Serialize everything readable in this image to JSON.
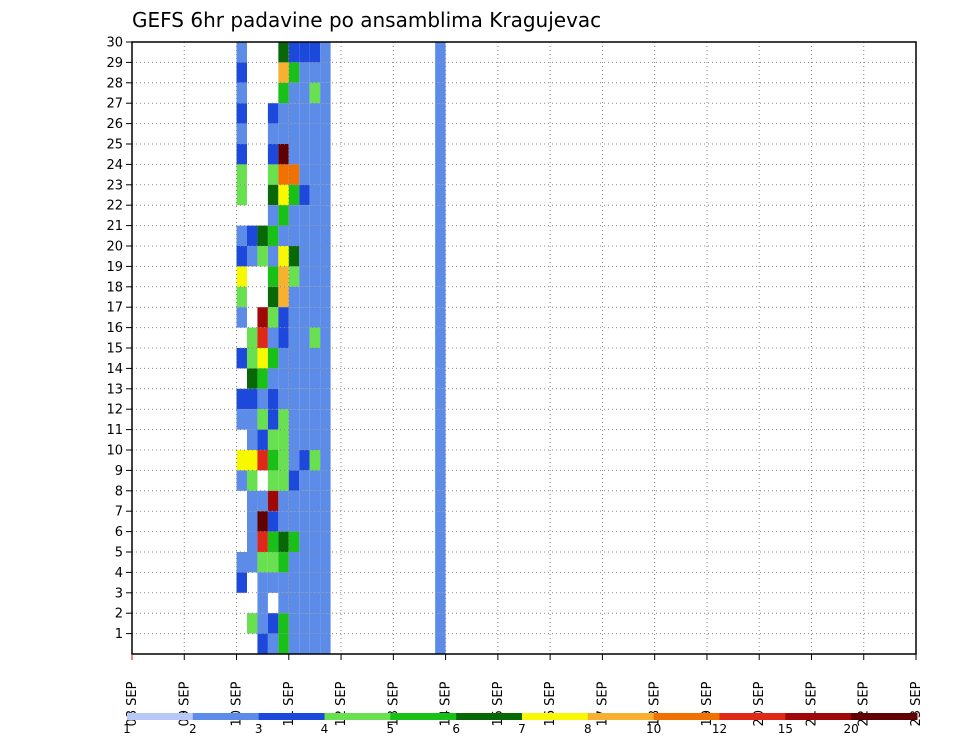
{
  "chart_data": {
    "type": "heatmap",
    "title": "GEFS 6hr padavine po ansamblima Kragujevac",
    "x_tick_labels": [
      "08 SEP",
      "09 SEP",
      "10 SEP",
      "11 SEP",
      "12 SEP",
      "13 SEP",
      "14 SEP",
      "15 SEP",
      "16 SEP",
      "17 SEP",
      "18 SEP",
      "19 SEP",
      "20 SEP",
      "21 SEP",
      "22 SEP",
      "23 SEP"
    ],
    "y_tick_labels": [
      "1",
      "2",
      "3",
      "4",
      "5",
      "6",
      "7",
      "8",
      "9",
      "10",
      "11",
      "12",
      "13",
      "14",
      "15",
      "16",
      "17",
      "18",
      "19",
      "20",
      "21",
      "22",
      "23",
      "24",
      "25",
      "26",
      "27",
      "28",
      "29",
      "30"
    ],
    "xlim": [
      0,
      15
    ],
    "ylim": [
      0,
      30
    ],
    "grid": true,
    "legend": "bottom",
    "colorbar": {
      "labels": [
        "1",
        "2",
        "3",
        "4",
        "5",
        "6",
        "7",
        "8",
        "10",
        "12",
        "15",
        "20"
      ],
      "colors": [
        "#b8c8f8",
        "#5c8ce8",
        "#1c48dc",
        "#68e050",
        "#18c018",
        "#086808",
        "#f8f800",
        "#f8b030",
        "#f07000",
        "#e02818",
        "#a00808",
        "#600000"
      ]
    },
    "cells": [
      [
        2.0,
        2.2,
        29.5,
        1
      ],
      [
        2.0,
        2.2,
        28.5,
        2
      ],
      [
        2.0,
        2.2,
        27.5,
        1
      ],
      [
        2.0,
        2.2,
        26.5,
        2
      ],
      [
        2.0,
        2.2,
        25.5,
        1
      ],
      [
        2.0,
        2.2,
        24.5,
        2
      ],
      [
        2.0,
        2.2,
        23.5,
        3
      ],
      [
        2.0,
        2.2,
        22.5,
        3
      ],
      [
        2.0,
        2.2,
        20.5,
        1
      ],
      [
        2.0,
        2.2,
        19.5,
        2
      ],
      [
        2.0,
        2.2,
        18.5,
        6
      ],
      [
        2.0,
        2.2,
        17.5,
        3
      ],
      [
        2.0,
        2.2,
        16.5,
        1
      ],
      [
        2.0,
        2.2,
        14.5,
        2
      ],
      [
        2.0,
        2.2,
        12.5,
        2
      ],
      [
        2.0,
        2.2,
        11.5,
        1
      ],
      [
        2.0,
        2.2,
        9.5,
        6
      ],
      [
        2.0,
        2.2,
        8.5,
        1
      ],
      [
        2.0,
        2.2,
        4.5,
        1
      ],
      [
        2.0,
        2.2,
        3.5,
        2
      ],
      [
        2.2,
        2.4,
        20.5,
        2
      ],
      [
        2.2,
        2.4,
        19.5,
        1
      ],
      [
        2.2,
        2.4,
        15.5,
        3
      ],
      [
        2.2,
        2.4,
        14.5,
        3
      ],
      [
        2.2,
        2.4,
        13.5,
        5
      ],
      [
        2.2,
        2.4,
        12.5,
        2
      ],
      [
        2.2,
        2.4,
        11.5,
        1
      ],
      [
        2.2,
        2.4,
        10.5,
        1
      ],
      [
        2.2,
        2.4,
        9.5,
        6
      ],
      [
        2.2,
        2.4,
        8.5,
        3
      ],
      [
        2.2,
        2.4,
        7.5,
        1
      ],
      [
        2.2,
        2.4,
        6.5,
        1
      ],
      [
        2.2,
        2.4,
        5.5,
        1
      ],
      [
        2.2,
        2.4,
        4.5,
        1
      ],
      [
        2.2,
        2.4,
        1.5,
        3
      ],
      [
        2.4,
        2.6,
        20.5,
        5
      ],
      [
        2.4,
        2.6,
        19.5,
        3
      ],
      [
        2.4,
        2.6,
        16.5,
        10
      ],
      [
        2.4,
        2.6,
        15.5,
        9
      ],
      [
        2.4,
        2.6,
        14.5,
        6
      ],
      [
        2.4,
        2.6,
        13.5,
        4
      ],
      [
        2.4,
        2.6,
        12.5,
        1
      ],
      [
        2.4,
        2.6,
        11.5,
        3
      ],
      [
        2.4,
        2.6,
        10.5,
        2
      ],
      [
        2.4,
        2.6,
        9.5,
        9
      ],
      [
        2.4,
        2.6,
        7.5,
        1
      ],
      [
        2.4,
        2.6,
        6.5,
        11
      ],
      [
        2.4,
        2.6,
        5.5,
        9
      ],
      [
        2.4,
        2.6,
        4.5,
        3
      ],
      [
        2.4,
        2.6,
        3.5,
        1
      ],
      [
        2.4,
        2.6,
        2.5,
        1
      ],
      [
        2.4,
        2.6,
        1.5,
        1
      ],
      [
        2.4,
        2.6,
        0.5,
        2
      ],
      [
        2.6,
        2.8,
        26.5,
        2
      ],
      [
        2.6,
        2.8,
        25.5,
        1
      ],
      [
        2.6,
        2.8,
        24.5,
        2
      ],
      [
        2.6,
        2.8,
        23.5,
        3
      ],
      [
        2.6,
        2.8,
        22.5,
        5
      ],
      [
        2.6,
        2.8,
        21.5,
        1
      ],
      [
        2.6,
        2.8,
        20.5,
        4
      ],
      [
        2.6,
        2.8,
        19.5,
        1
      ],
      [
        2.6,
        2.8,
        18.5,
        4
      ],
      [
        2.6,
        2.8,
        17.5,
        5
      ],
      [
        2.6,
        2.8,
        16.5,
        3
      ],
      [
        2.6,
        2.8,
        15.5,
        1
      ],
      [
        2.6,
        2.8,
        14.5,
        4
      ],
      [
        2.6,
        2.8,
        13.5,
        1
      ],
      [
        2.6,
        2.8,
        12.5,
        2
      ],
      [
        2.6,
        2.8,
        11.5,
        2
      ],
      [
        2.6,
        2.8,
        10.5,
        3
      ],
      [
        2.6,
        2.8,
        9.5,
        4
      ],
      [
        2.6,
        2.8,
        8.5,
        3
      ],
      [
        2.6,
        2.8,
        7.5,
        10
      ],
      [
        2.6,
        2.8,
        6.5,
        2
      ],
      [
        2.6,
        2.8,
        5.5,
        4
      ],
      [
        2.6,
        2.8,
        4.5,
        3
      ],
      [
        2.6,
        2.8,
        3.5,
        1
      ],
      [
        2.6,
        2.8,
        1.5,
        2
      ],
      [
        2.6,
        2.8,
        0.5,
        1
      ],
      [
        2.8,
        3.0,
        29.5,
        5
      ],
      [
        2.8,
        3.0,
        28.5,
        7
      ],
      [
        2.8,
        3.0,
        27.5,
        4
      ],
      [
        2.8,
        3.0,
        26.5,
        1
      ],
      [
        2.8,
        3.0,
        25.5,
        1
      ],
      [
        2.8,
        3.0,
        24.5,
        11
      ],
      [
        2.8,
        3.0,
        23.5,
        8
      ],
      [
        2.8,
        3.0,
        22.5,
        6
      ],
      [
        2.8,
        3.0,
        21.5,
        4
      ],
      [
        2.8,
        3.0,
        20.5,
        1
      ],
      [
        2.8,
        3.0,
        19.5,
        6
      ],
      [
        2.8,
        3.0,
        18.5,
        7
      ],
      [
        2.8,
        3.0,
        17.5,
        7
      ],
      [
        2.8,
        3.0,
        16.5,
        2
      ],
      [
        2.8,
        3.0,
        15.5,
        2
      ],
      [
        2.8,
        3.0,
        14.5,
        1
      ],
      [
        2.8,
        3.0,
        13.5,
        1
      ],
      [
        2.8,
        3.0,
        12.5,
        1
      ],
      [
        2.8,
        3.0,
        11.5,
        3
      ],
      [
        2.8,
        3.0,
        10.5,
        3
      ],
      [
        2.8,
        3.0,
        9.5,
        3
      ],
      [
        2.8,
        3.0,
        8.5,
        3
      ],
      [
        2.8,
        3.0,
        7.5,
        1
      ],
      [
        2.8,
        3.0,
        6.5,
        1
      ],
      [
        2.8,
        3.0,
        5.5,
        5
      ],
      [
        2.8,
        3.0,
        4.5,
        4
      ],
      [
        2.8,
        3.0,
        3.5,
        1
      ],
      [
        2.8,
        3.0,
        2.5,
        1
      ],
      [
        2.8,
        3.0,
        1.5,
        4
      ],
      [
        2.8,
        3.0,
        0.5,
        4
      ],
      [
        3.0,
        3.2,
        29.5,
        2
      ],
      [
        3.0,
        3.2,
        28.5,
        4
      ],
      [
        3.0,
        3.2,
        27.5,
        1
      ],
      [
        3.0,
        3.2,
        26.5,
        1
      ],
      [
        3.0,
        3.2,
        25.5,
        1
      ],
      [
        3.0,
        3.2,
        24.5,
        1
      ],
      [
        3.0,
        3.2,
        23.5,
        8
      ],
      [
        3.0,
        3.2,
        22.5,
        4
      ],
      [
        3.0,
        3.2,
        21.5,
        1
      ],
      [
        3.0,
        3.2,
        20.5,
        1
      ],
      [
        3.0,
        3.2,
        19.5,
        5
      ],
      [
        3.0,
        3.2,
        18.5,
        3
      ],
      [
        3.0,
        3.2,
        17.5,
        1
      ],
      [
        3.0,
        3.2,
        16.5,
        1
      ],
      [
        3.0,
        3.2,
        15.5,
        1
      ],
      [
        3.0,
        3.2,
        14.5,
        1
      ],
      [
        3.0,
        3.2,
        13.5,
        1
      ],
      [
        3.0,
        3.2,
        12.5,
        1
      ],
      [
        3.0,
        3.2,
        11.5,
        1
      ],
      [
        3.0,
        3.2,
        10.5,
        1
      ],
      [
        3.0,
        3.2,
        9.5,
        1
      ],
      [
        3.0,
        3.2,
        8.5,
        2
      ],
      [
        3.0,
        3.2,
        7.5,
        1
      ],
      [
        3.0,
        3.2,
        6.5,
        1
      ],
      [
        3.0,
        3.2,
        5.5,
        4
      ],
      [
        3.0,
        3.2,
        4.5,
        1
      ],
      [
        3.0,
        3.2,
        3.5,
        1
      ],
      [
        3.0,
        3.2,
        2.5,
        1
      ],
      [
        3.0,
        3.2,
        1.5,
        1
      ],
      [
        3.0,
        3.2,
        0.5,
        1
      ],
      [
        3.2,
        3.4,
        29.5,
        2
      ],
      [
        3.2,
        3.4,
        28.5,
        1
      ],
      [
        3.2,
        3.4,
        27.5,
        1
      ],
      [
        3.2,
        3.4,
        26.5,
        1
      ],
      [
        3.2,
        3.4,
        25.5,
        1
      ],
      [
        3.2,
        3.4,
        24.5,
        1
      ],
      [
        3.2,
        3.4,
        23.5,
        1
      ],
      [
        3.2,
        3.4,
        22.5,
        2
      ],
      [
        3.2,
        3.4,
        21.5,
        1
      ],
      [
        3.2,
        3.4,
        20.5,
        1
      ],
      [
        3.2,
        3.4,
        19.5,
        1
      ],
      [
        3.2,
        3.4,
        18.5,
        1
      ],
      [
        3.2,
        3.4,
        17.5,
        1
      ],
      [
        3.2,
        3.4,
        16.5,
        1
      ],
      [
        3.2,
        3.4,
        15.5,
        1
      ],
      [
        3.2,
        3.4,
        14.5,
        1
      ],
      [
        3.2,
        3.4,
        13.5,
        1
      ],
      [
        3.2,
        3.4,
        12.5,
        1
      ],
      [
        3.2,
        3.4,
        11.5,
        1
      ],
      [
        3.2,
        3.4,
        10.5,
        1
      ],
      [
        3.2,
        3.4,
        9.5,
        2
      ],
      [
        3.2,
        3.4,
        8.5,
        1
      ],
      [
        3.2,
        3.4,
        7.5,
        1
      ],
      [
        3.2,
        3.4,
        6.5,
        1
      ],
      [
        3.2,
        3.4,
        5.5,
        1
      ],
      [
        3.2,
        3.4,
        4.5,
        1
      ],
      [
        3.2,
        3.4,
        3.5,
        1
      ],
      [
        3.2,
        3.4,
        2.5,
        1
      ],
      [
        3.2,
        3.4,
        1.5,
        1
      ],
      [
        3.2,
        3.4,
        0.5,
        1
      ],
      [
        3.4,
        3.6,
        29.5,
        2
      ],
      [
        3.4,
        3.6,
        28.5,
        1
      ],
      [
        3.4,
        3.6,
        27.5,
        3
      ],
      [
        3.4,
        3.6,
        26.5,
        1
      ],
      [
        3.4,
        3.6,
        25.5,
        1
      ],
      [
        3.4,
        3.6,
        24.5,
        1
      ],
      [
        3.4,
        3.6,
        23.5,
        1
      ],
      [
        3.4,
        3.6,
        22.5,
        1
      ],
      [
        3.4,
        3.6,
        21.5,
        1
      ],
      [
        3.4,
        3.6,
        20.5,
        1
      ],
      [
        3.4,
        3.6,
        19.5,
        1
      ],
      [
        3.4,
        3.6,
        18.5,
        1
      ],
      [
        3.4,
        3.6,
        17.5,
        1
      ],
      [
        3.4,
        3.6,
        16.5,
        1
      ],
      [
        3.4,
        3.6,
        15.5,
        3
      ],
      [
        3.4,
        3.6,
        14.5,
        1
      ],
      [
        3.4,
        3.6,
        13.5,
        1
      ],
      [
        3.4,
        3.6,
        12.5,
        1
      ],
      [
        3.4,
        3.6,
        11.5,
        1
      ],
      [
        3.4,
        3.6,
        10.5,
        1
      ],
      [
        3.4,
        3.6,
        9.5,
        3
      ],
      [
        3.4,
        3.6,
        8.5,
        1
      ],
      [
        3.4,
        3.6,
        7.5,
        1
      ],
      [
        3.4,
        3.6,
        6.5,
        1
      ],
      [
        3.4,
        3.6,
        5.5,
        1
      ],
      [
        3.4,
        3.6,
        4.5,
        1
      ],
      [
        3.4,
        3.6,
        3.5,
        1
      ],
      [
        3.4,
        3.6,
        2.5,
        1
      ],
      [
        3.4,
        3.6,
        1.5,
        1
      ],
      [
        3.4,
        3.6,
        0.5,
        1
      ],
      [
        3.6,
        3.8,
        29.5,
        1
      ],
      [
        3.6,
        3.8,
        28.5,
        1
      ],
      [
        3.6,
        3.8,
        27.5,
        1
      ],
      [
        3.6,
        3.8,
        26.5,
        1
      ],
      [
        3.6,
        3.8,
        25.5,
        1
      ],
      [
        3.6,
        3.8,
        24.5,
        1
      ],
      [
        3.6,
        3.8,
        23.5,
        1
      ],
      [
        3.6,
        3.8,
        22.5,
        1
      ],
      [
        3.6,
        3.8,
        21.5,
        1
      ],
      [
        3.6,
        3.8,
        20.5,
        1
      ],
      [
        3.6,
        3.8,
        19.5,
        1
      ],
      [
        3.6,
        3.8,
        18.5,
        1
      ],
      [
        3.6,
        3.8,
        17.5,
        1
      ],
      [
        3.6,
        3.8,
        16.5,
        1
      ],
      [
        3.6,
        3.8,
        15.5,
        1
      ],
      [
        3.6,
        3.8,
        14.5,
        1
      ],
      [
        3.6,
        3.8,
        13.5,
        1
      ],
      [
        3.6,
        3.8,
        12.5,
        1
      ],
      [
        3.6,
        3.8,
        11.5,
        1
      ],
      [
        3.6,
        3.8,
        10.5,
        1
      ],
      [
        3.6,
        3.8,
        9.5,
        1
      ],
      [
        3.6,
        3.8,
        8.5,
        1
      ],
      [
        3.6,
        3.8,
        7.5,
        1
      ],
      [
        3.6,
        3.8,
        6.5,
        1
      ],
      [
        3.6,
        3.8,
        5.5,
        1
      ],
      [
        3.6,
        3.8,
        4.5,
        1
      ],
      [
        3.6,
        3.8,
        3.5,
        1
      ],
      [
        3.6,
        3.8,
        2.5,
        1
      ],
      [
        3.6,
        3.8,
        1.5,
        1
      ],
      [
        3.6,
        3.8,
        0.5,
        1
      ],
      [
        5.8,
        6.0,
        29.5,
        1
      ],
      [
        5.8,
        6.0,
        28.5,
        1
      ],
      [
        5.8,
        6.0,
        27.5,
        1
      ],
      [
        5.8,
        6.0,
        26.5,
        1
      ],
      [
        5.8,
        6.0,
        25.5,
        1
      ],
      [
        5.8,
        6.0,
        24.5,
        1
      ],
      [
        5.8,
        6.0,
        23.5,
        1
      ],
      [
        5.8,
        6.0,
        22.5,
        1
      ],
      [
        5.8,
        6.0,
        21.5,
        1
      ],
      [
        5.8,
        6.0,
        20.5,
        1
      ],
      [
        5.8,
        6.0,
        19.5,
        1
      ],
      [
        5.8,
        6.0,
        18.5,
        1
      ],
      [
        5.8,
        6.0,
        17.5,
        1
      ],
      [
        5.8,
        6.0,
        16.5,
        1
      ],
      [
        5.8,
        6.0,
        15.5,
        1
      ],
      [
        5.8,
        6.0,
        14.5,
        1
      ],
      [
        5.8,
        6.0,
        13.5,
        1
      ],
      [
        5.8,
        6.0,
        12.5,
        1
      ],
      [
        5.8,
        6.0,
        11.5,
        1
      ],
      [
        5.8,
        6.0,
        10.5,
        1
      ],
      [
        5.8,
        6.0,
        9.5,
        1
      ],
      [
        5.8,
        6.0,
        8.5,
        1
      ],
      [
        5.8,
        6.0,
        7.5,
        1
      ],
      [
        5.8,
        6.0,
        6.5,
        1
      ],
      [
        5.8,
        6.0,
        5.5,
        1
      ],
      [
        5.8,
        6.0,
        4.5,
        1
      ],
      [
        5.8,
        6.0,
        3.5,
        1
      ],
      [
        5.8,
        6.0,
        2.5,
        1
      ],
      [
        5.8,
        6.0,
        1.5,
        1
      ],
      [
        5.8,
        6.0,
        0.5,
        1
      ]
    ]
  }
}
